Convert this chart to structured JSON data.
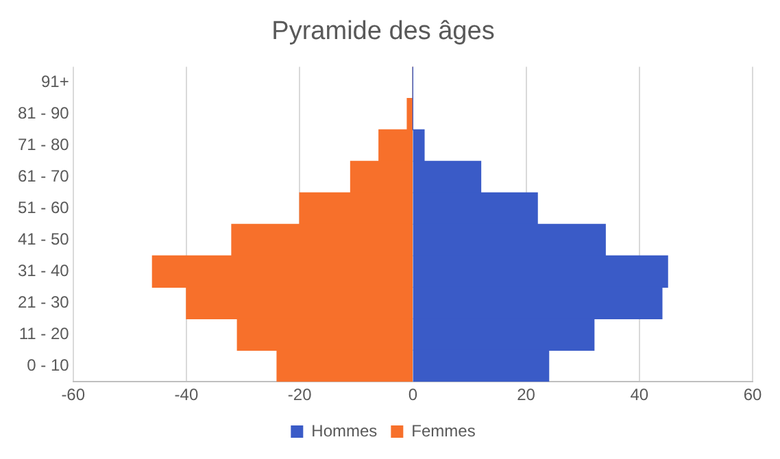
{
  "chart_data": {
    "type": "bar",
    "title": "Pyramide des âges",
    "orientation": "horizontal",
    "stacked": true,
    "categories": [
      "91+",
      "81 - 90",
      "71 - 80",
      "61 - 70",
      "51 - 60",
      "41 - 50",
      "31 - 40",
      "21 - 30",
      "11 - 20",
      "0 - 10"
    ],
    "series": [
      {
        "name": "Hommes",
        "color": "#3a5bc7",
        "values": [
          0,
          0,
          2,
          12,
          22,
          34,
          45,
          44,
          32,
          24
        ]
      },
      {
        "name": "Femmes",
        "color": "#f7702b",
        "values": [
          0,
          -1,
          -6,
          -11,
          -20,
          -32,
          -46,
          -40,
          -31,
          -24
        ]
      }
    ],
    "xlim": [
      -60,
      60
    ],
    "xticks": [
      -60,
      -40,
      -20,
      0,
      20,
      40,
      60
    ],
    "grid": "x",
    "legend": "bottom"
  }
}
